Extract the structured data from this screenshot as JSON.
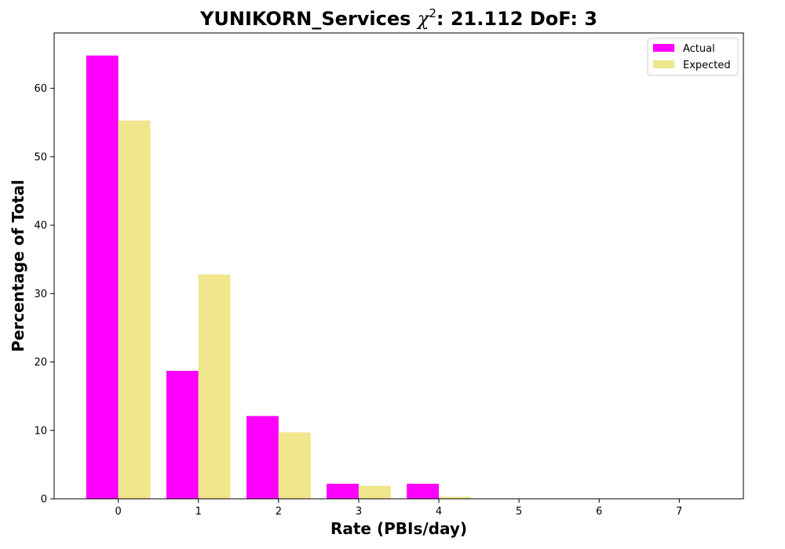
{
  "chart_data": {
    "type": "bar",
    "title": {
      "prefix": "YUNIKORN_Services ",
      "chi_symbol": "χ",
      "chi_exponent": "2",
      "suffix": ": 21.112 DoF: 3"
    },
    "xlabel": "Rate (PBIs/day)",
    "ylabel": "Percentage of Total",
    "categories": [
      "0",
      "1",
      "2",
      "3",
      "4",
      "5",
      "6",
      "7"
    ],
    "x_ticks": [
      "0",
      "1",
      "2",
      "3",
      "4",
      "5",
      "6",
      "7"
    ],
    "y_ticks": [
      "0",
      "10",
      "20",
      "30",
      "40",
      "50",
      "60"
    ],
    "ylim": [
      0,
      68.1
    ],
    "xlim": [
      -0.8,
      7.8
    ],
    "series": [
      {
        "name": "Actual",
        "color": "#ff00ff",
        "values": [
          64.8,
          18.7,
          12.1,
          2.2,
          2.2,
          0.0,
          0.0,
          0.0
        ]
      },
      {
        "name": "Expected",
        "color": "#f0e68c",
        "values": [
          55.3,
          32.8,
          9.7,
          1.9,
          0.3,
          0.05,
          0.0,
          0.0
        ]
      }
    ],
    "legend_position": "top-right",
    "grid": false
  }
}
